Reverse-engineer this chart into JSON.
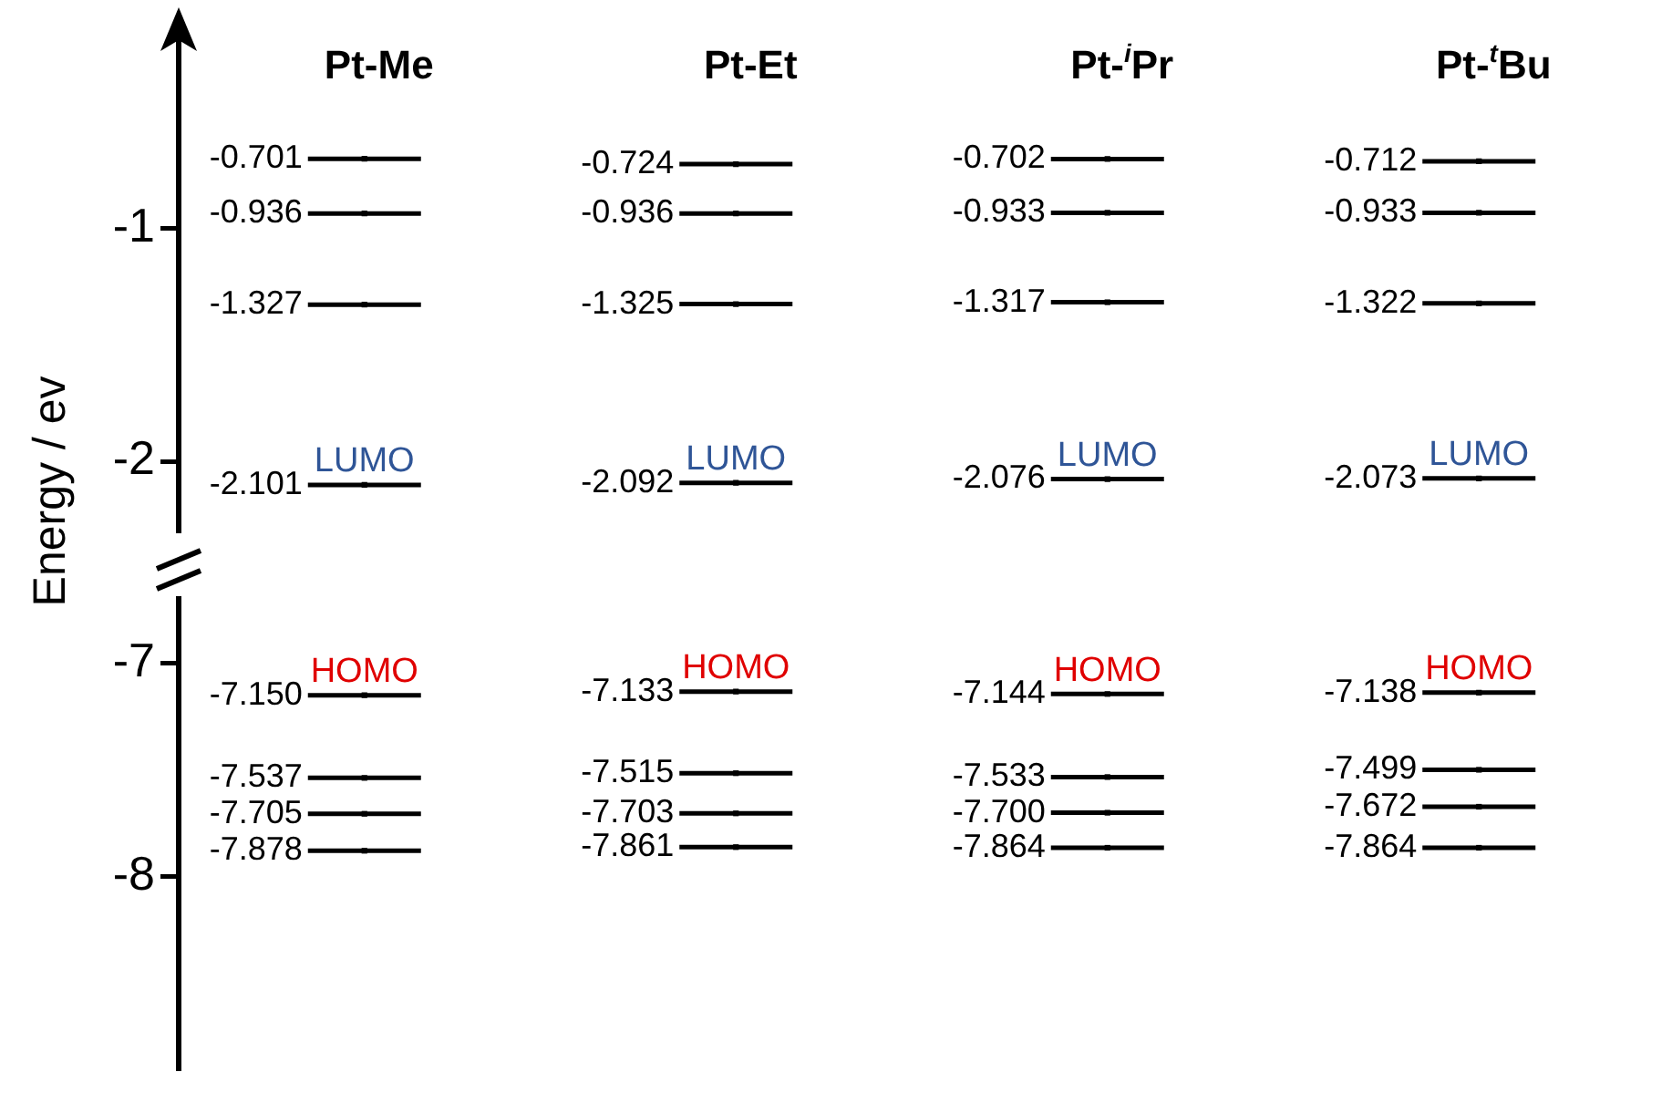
{
  "chart_data": [
    {
      "type": "scatter",
      "ylabel": "Energy / ev",
      "categories": [
        "Pt-Me",
        "Pt-Et",
        "Pt-$^{i}$Pr",
        "Pt-$^{t}$Bu"
      ],
      "ylim": [
        -2.3,
        -0.45
      ],
      "yticks": [
        -2,
        -1
      ],
      "grid": false,
      "legend": false,
      "series": [
        {
          "color": "#000000",
          "values": [
            -0.701,
            -0.724,
            -0.702,
            -0.712
          ],
          "value_labels": [
            "-0.701",
            "-0.724",
            "-0.702",
            "-0.712"
          ]
        },
        {
          "color": "#000000",
          "values": [
            -0.936,
            -0.936,
            -0.933,
            -0.933
          ],
          "value_labels": [
            "-0.936",
            "-0.936",
            "-0.933",
            "-0.933"
          ]
        },
        {
          "color": "#000000",
          "values": [
            -1.327,
            -1.325,
            -1.317,
            -1.322
          ],
          "value_labels": [
            "-1.327",
            "-1.325",
            "-1.317",
            "-1.322"
          ]
        },
        {
          "color": "#000000",
          "values": [
            -2.101,
            -2.092,
            -2.076,
            -2.073
          ],
          "value_labels": [
            "-2.101",
            "-2.092",
            "-2.076",
            "-2.073"
          ]
        }
      ],
      "annotations": [
        "LUMO",
        "LUMO",
        "LUMO",
        "LUMO"
      ]
    },
    {
      "type": "scatter",
      "categories": [
        null,
        null,
        null,
        null
      ],
      "ylim": [
        -8.9,
        -6.7
      ],
      "yticks": [
        -8,
        -7
      ],
      "grid": false,
      "legend": false,
      "tick_labels": "y",
      "series": [
        {
          "color": "#000000",
          "values": [
            -7.15,
            -7.133,
            -7.144,
            -7.138
          ],
          "value_labels": [
            "-7.150",
            "-7.133",
            "-7.144",
            "-7.138"
          ]
        },
        {
          "color": "#000000",
          "values": [
            -7.537,
            -7.515,
            -7.533,
            -7.499
          ],
          "value_labels": [
            "-7.537",
            "-7.515",
            "-7.533",
            "-7.499"
          ]
        },
        {
          "color": "#000000",
          "values": [
            -7.705,
            -7.703,
            -7.7,
            -7.672
          ],
          "value_labels": [
            "-7.705",
            "-7.703",
            "-7.700",
            "-7.672"
          ]
        },
        {
          "color": "#000000",
          "values": [
            -7.878,
            -7.861,
            -7.864,
            -7.864
          ],
          "value_labels": [
            "-7.878",
            "-7.861",
            "-7.864",
            "-7.864"
          ]
        }
      ],
      "annotations": [
        "HOMO",
        "HOMO",
        "HOMO",
        "HOMO"
      ]
    }
  ]
}
